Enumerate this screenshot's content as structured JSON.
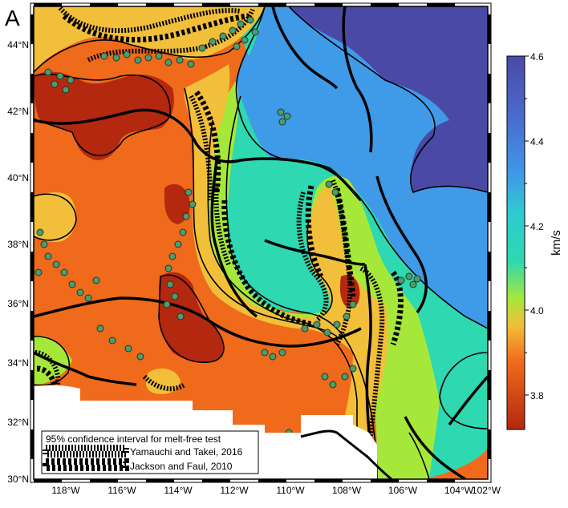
{
  "panel_label": "A",
  "map": {
    "x_ticks": [
      "118°W",
      "116°W",
      "114°W",
      "112°W",
      "110°W",
      "108°W",
      "106°W",
      "104°W",
      "102°W"
    ],
    "y_ticks": [
      "44°N",
      "42°N",
      "40°N",
      "38°N",
      "36°N",
      "34°N",
      "32°N",
      "30°N"
    ]
  },
  "colorbar": {
    "unit": "km/s",
    "tick_labels": [
      "4.6",
      "4.4",
      "4.2",
      "4.0",
      "3.8"
    ],
    "colors": [
      "#4a4aa6",
      "#3f9ae8",
      "#2ed8b0",
      "#a6e83a",
      "#f2bf3a",
      "#f06a1c",
      "#b3280f"
    ]
  },
  "legend": {
    "title": "95% confidence interval for melt-free test",
    "items": [
      {
        "label": "Yamauchi and Takei, 2016",
        "style": "fine-hatch"
      },
      {
        "label": "Jackson and Faul, 2010",
        "style": "coarse-hatch"
      }
    ]
  },
  "colors": {
    "velocity_3_8": "#b3280f",
    "velocity_3_9": "#f06a1c",
    "velocity_4_0": "#f2bf3a",
    "velocity_4_1": "#a6e83a",
    "velocity_4_2": "#2ed8b0",
    "velocity_4_4": "#3f9ae8",
    "velocity_4_6": "#4a4aa6",
    "station_marker": "#4f9a6e"
  }
}
